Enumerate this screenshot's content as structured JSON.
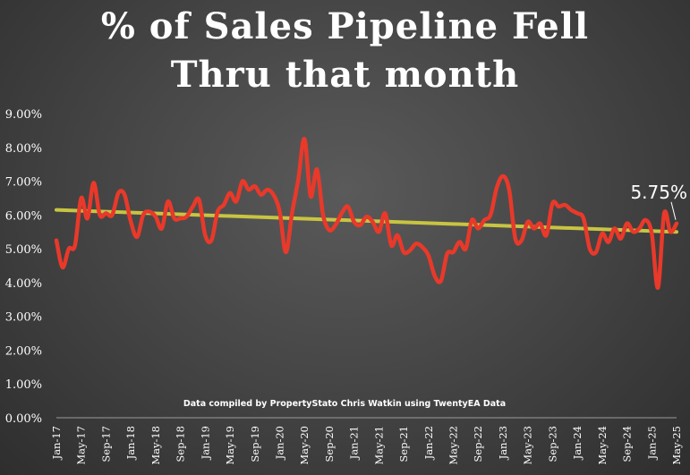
{
  "chart_data": {
    "type": "line",
    "title_lines": [
      "% of Sales Pipeline Fell",
      "Thru that month"
    ],
    "xlabel": "",
    "ylabel": "",
    "ylim": [
      0,
      9
    ],
    "y_ticks": [
      "0.00%",
      "1.00%",
      "2.00%",
      "3.00%",
      "4.00%",
      "5.00%",
      "6.00%",
      "7.00%",
      "8.00%",
      "9.00%"
    ],
    "x_tick_labels": [
      "Jan-17",
      "May-17",
      "Sep-17",
      "Jan-18",
      "May-18",
      "Sep-18",
      "Jan-19",
      "May-19",
      "Sep-19",
      "Jan-20",
      "May-20",
      "Sep-20",
      "Jan-21",
      "May-21",
      "Sep-21",
      "Jan-22",
      "May-22",
      "Sep-22",
      "Jan-23",
      "May-23",
      "Sep-23",
      "Jan-24",
      "May-24",
      "Sep-24",
      "Jan-25",
      "May-25"
    ],
    "series": [
      {
        "color": "#e8392a",
        "values": [
          5.25,
          4.45,
          5.0,
          5.1,
          6.5,
          5.9,
          6.95,
          6.0,
          6.05,
          6.0,
          6.65,
          6.6,
          5.8,
          5.35,
          6.0,
          6.1,
          5.95,
          5.6,
          6.4,
          5.9,
          5.9,
          5.95,
          6.25,
          6.45,
          5.4,
          5.25,
          6.1,
          6.3,
          6.65,
          6.4,
          7.0,
          6.75,
          6.85,
          6.6,
          6.75,
          6.6,
          6.1,
          4.9,
          6.05,
          7.05,
          8.25,
          6.55,
          7.35,
          6.0,
          5.55,
          5.7,
          6.05,
          6.25,
          5.8,
          5.7,
          5.95,
          5.8,
          5.5,
          6.05,
          5.1,
          5.4,
          4.9,
          4.95,
          5.15,
          5.05,
          4.8,
          4.2,
          4.05,
          4.85,
          4.9,
          5.2,
          5.0,
          5.85,
          5.6,
          5.85,
          6.0,
          6.8,
          7.15,
          6.75,
          5.3,
          5.25,
          5.8,
          5.6,
          5.75,
          5.4,
          6.35,
          6.25,
          6.3,
          6.15,
          6.05,
          5.9,
          5.0,
          4.9,
          5.45,
          5.2,
          5.6,
          5.3,
          5.75,
          5.5,
          5.6,
          5.85,
          5.45,
          3.85,
          6.05,
          5.5,
          5.75
        ],
        "last_value_label": "5.75%"
      }
    ],
    "trendline": {
      "color": "#c8c442",
      "start": 6.15,
      "end": 5.5
    },
    "annotation": "Data compiled by PropertyStato Chris Watkin using TwentyEA Data",
    "grid": false,
    "legend": "none"
  }
}
